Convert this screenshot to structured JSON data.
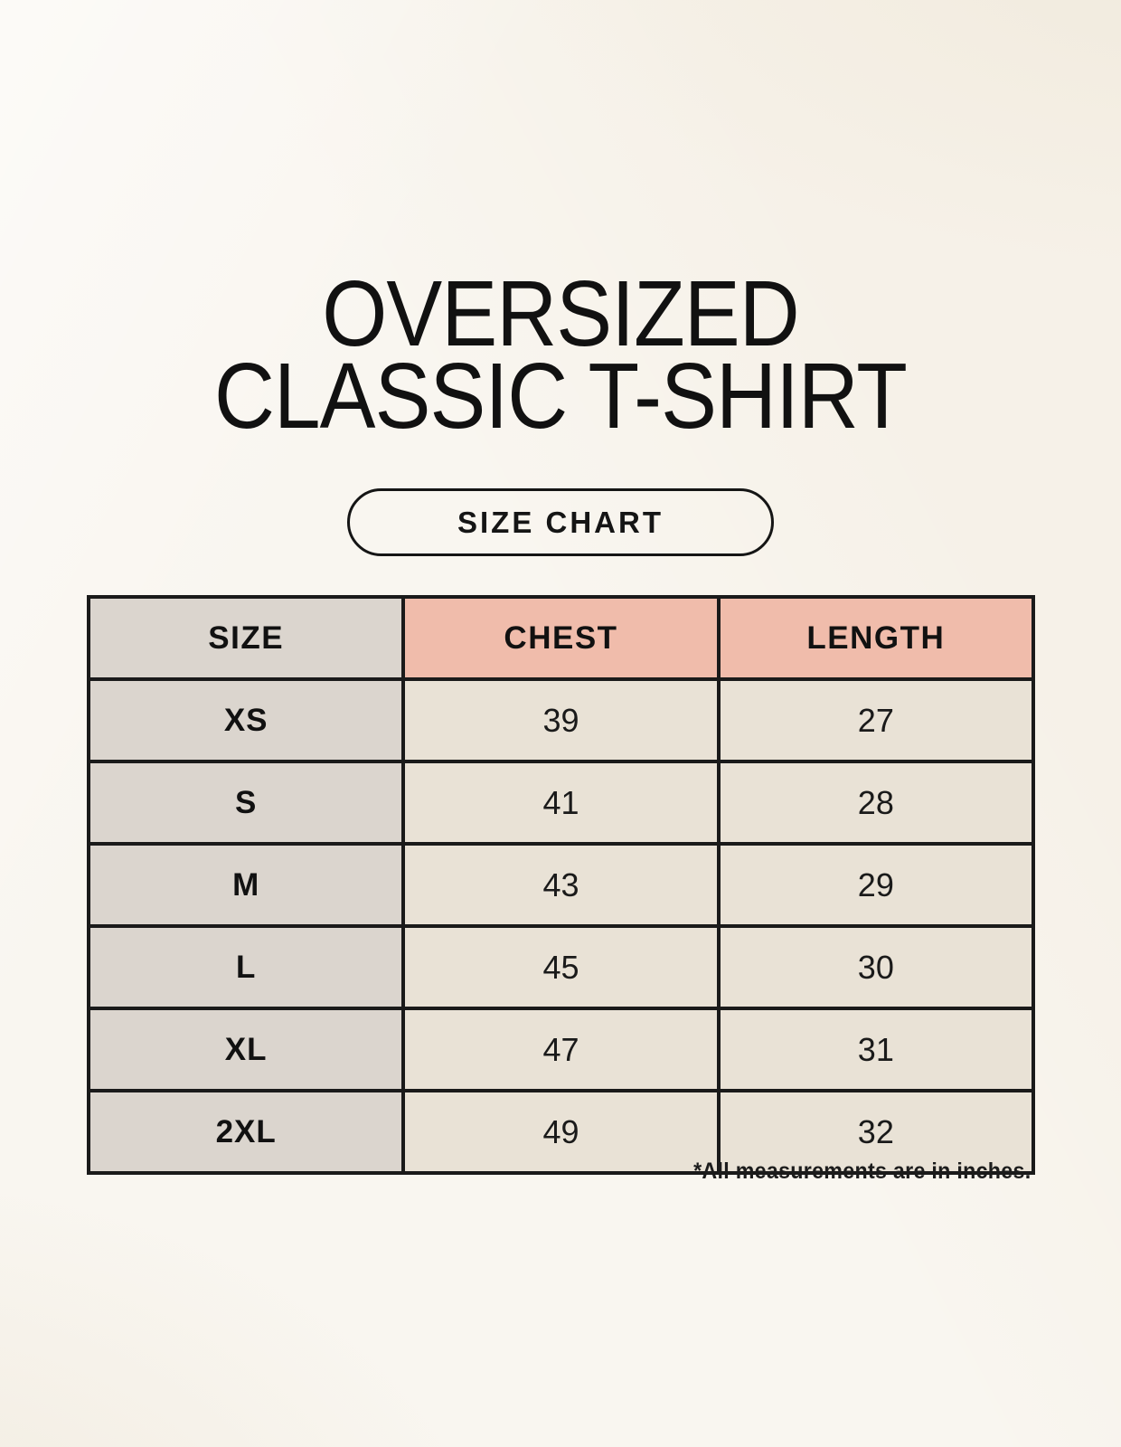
{
  "page": {
    "title_line1": "OVERSIZED",
    "title_line2": "CLASSIC T-SHIRT",
    "size_chart_button_label": "SIZE CHART",
    "footnote": "*All measurements are in inches."
  },
  "colors": {
    "page_background": "#f6f1e8",
    "header_accent_pink": "#f0bcab",
    "size_column_gray": "#dbd5ce",
    "value_cell_cream": "#e9e2d6",
    "table_border": "#1a1a1a",
    "text": "#141414"
  },
  "table": {
    "columns": [
      "SIZE",
      "CHEST",
      "LENGTH"
    ],
    "rows": [
      {
        "size": "XS",
        "chest": "39",
        "length": "27"
      },
      {
        "size": "S",
        "chest": "41",
        "length": "28"
      },
      {
        "size": "M",
        "chest": "43",
        "length": "29"
      },
      {
        "size": "L",
        "chest": "45",
        "length": "30"
      },
      {
        "size": "XL",
        "chest": "47",
        "length": "31"
      },
      {
        "size": "2XL",
        "chest": "49",
        "length": "32"
      }
    ]
  },
  "chart_data": {
    "type": "table",
    "title": "OVERSIZED CLASSIC T-SHIRT — SIZE CHART",
    "columns": [
      "SIZE",
      "CHEST",
      "LENGTH"
    ],
    "rows": [
      [
        "XS",
        39,
        27
      ],
      [
        "S",
        41,
        28
      ],
      [
        "M",
        43,
        29
      ],
      [
        "L",
        45,
        30
      ],
      [
        "XL",
        47,
        31
      ],
      [
        "2XL",
        49,
        32
      ]
    ],
    "units": "inches",
    "notes": "*All measurements are in inches."
  }
}
